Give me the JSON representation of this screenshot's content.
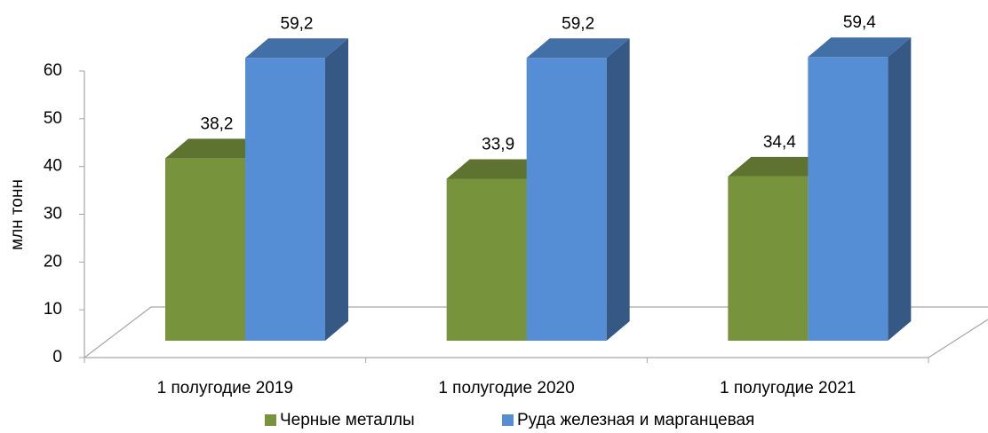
{
  "chart_data": {
    "type": "bar3d",
    "y_label": "млн тонн",
    "categories": [
      "1 полугодие 2019",
      "1 полугодие 2020",
      "1 полугодие 2021"
    ],
    "series": [
      {
        "name": "Черные металлы",
        "color": "#77933c",
        "values": [
          38.2,
          33.9,
          34.4
        ],
        "value_labels": [
          "38,2",
          "33,9",
          "34,4"
        ]
      },
      {
        "name": "Руда железная и марганцевая",
        "color": "#558ed5",
        "values": [
          59.2,
          59.2,
          59.4
        ],
        "value_labels": [
          "59,2",
          "59,2",
          "59,4"
        ]
      }
    ],
    "ylim": [
      0,
      60
    ],
    "yticks": [
      0,
      10,
      20,
      30,
      40,
      50,
      60
    ],
    "legend": "bottom"
  }
}
